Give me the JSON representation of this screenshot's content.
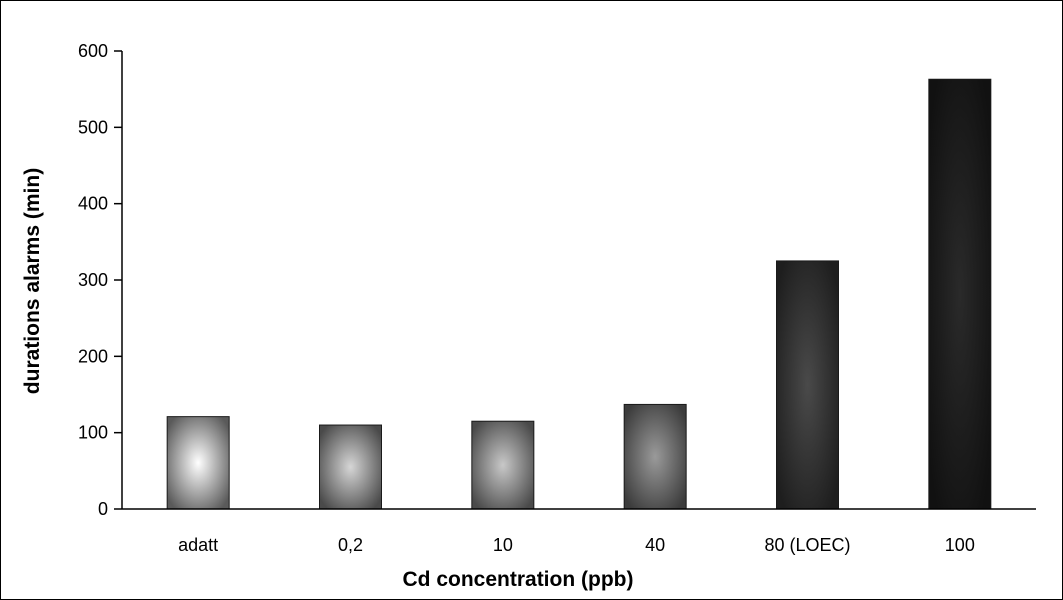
{
  "chart_data": {
    "type": "bar",
    "title": "",
    "xlabel": "Cd concentration (ppb)",
    "ylabel": "durations alarms (min)",
    "categories": [
      "adatt",
      "0,2",
      "10",
      "40",
      "80 (LOEC)",
      "100"
    ],
    "values": [
      121,
      110,
      115,
      137,
      325,
      563
    ],
    "ylim": [
      0,
      600
    ],
    "yticks": [
      0,
      100,
      200,
      300,
      400,
      500,
      600
    ],
    "grid": false,
    "legend": "none",
    "bar_colors": [
      {
        "center": "#ffffff",
        "edge": "#5a5a5a"
      },
      {
        "center": "#d6d6d6",
        "edge": "#4a4a4a"
      },
      {
        "center": "#c8c8c8",
        "edge": "#4a4a4a"
      },
      {
        "center": "#9a9a9a",
        "edge": "#3c3c3c"
      },
      {
        "center": "#4a4a4a",
        "edge": "#1e1e1e"
      },
      {
        "center": "#2a2a2a",
        "edge": "#111111"
      }
    ]
  }
}
